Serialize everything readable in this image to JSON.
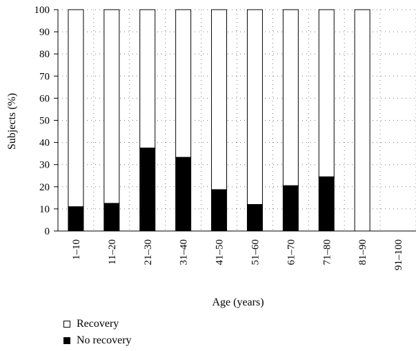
{
  "chart_data": {
    "type": "bar",
    "stacked": true,
    "categories": [
      "1–10",
      "11–20",
      "21–30",
      "31–40",
      "41–50",
      "51–60",
      "61–70",
      "71–80",
      "81–90",
      "91–100"
    ],
    "series": [
      {
        "name": "No recovery",
        "color": "#000000",
        "values": [
          11,
          12.5,
          37.5,
          33.3,
          18.7,
          12,
          20.5,
          24.5,
          0,
          0
        ]
      },
      {
        "name": "Recovery",
        "color": "#ffffff",
        "values": [
          89,
          87.5,
          62.5,
          66.7,
          81.3,
          88,
          79.5,
          75.5,
          100,
          0
        ]
      }
    ],
    "title": "",
    "xlabel": "Age (years)",
    "ylabel": "Subjects (%)",
    "ylim": [
      0,
      100
    ],
    "yticks": [
      "0",
      "10",
      "20",
      "30",
      "40",
      "50",
      "60",
      "70",
      "80",
      "90",
      "100"
    ],
    "grid": "dotted horizontal and vertical",
    "legend_position": "bottom-left"
  },
  "legend": {
    "items": [
      {
        "label": "Recovery",
        "color": "#ffffff"
      },
      {
        "label": "No recovery",
        "color": "#000000"
      }
    ]
  }
}
